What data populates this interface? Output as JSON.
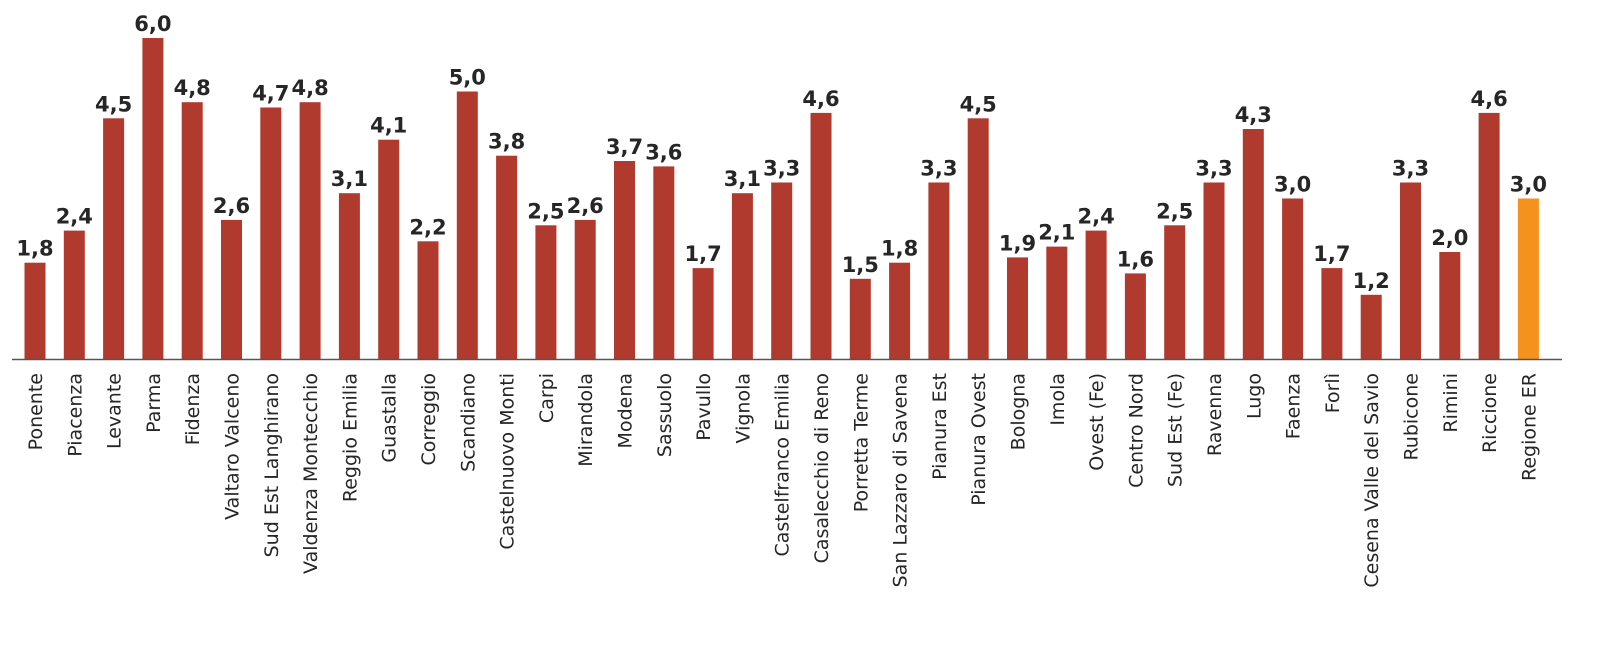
{
  "chart_data": {
    "type": "bar",
    "categories": [
      "Ponente",
      "Piacenza",
      "Levante",
      "Parma",
      "Fidenza",
      "Valtaro Valceno",
      "Sud Est Langhirano",
      "Valdenza Montecchio",
      "Reggio Emilia",
      "Guastalla",
      "Correggio",
      "Scandiano",
      "Castelnuovo Monti",
      "Carpi",
      "Mirandola",
      "Modena",
      "Sassuolo",
      "Pavullo",
      "Vignola",
      "Castelfranco Emilia",
      "Casalecchio di Reno",
      "Porretta Terme",
      "San Lazzaro di Savena",
      "Pianura Est",
      "Pianura Ovest",
      "Bologna",
      "Imola",
      "Ovest (Fe)",
      "Centro Nord",
      "Sud Est (Fe)",
      "Ravenna",
      "Lugo",
      "Faenza",
      "Forlì",
      "Cesena Valle del Savio",
      "Rubicone",
      "Rimini",
      "Riccione",
      "Regione ER"
    ],
    "values": [
      1.8,
      2.4,
      4.5,
      6.0,
      4.8,
      2.6,
      4.7,
      4.8,
      3.1,
      4.1,
      2.2,
      5.0,
      3.8,
      2.5,
      2.6,
      3.7,
      3.6,
      1.7,
      3.1,
      3.3,
      4.6,
      1.5,
      1.8,
      3.3,
      4.5,
      1.9,
      2.1,
      2.4,
      1.6,
      2.5,
      3.3,
      4.3,
      3.0,
      1.7,
      1.2,
      3.3,
      2.0,
      4.6,
      3.0
    ],
    "value_labels": [
      "1,8",
      "2,4",
      "4,5",
      "6,0",
      "4,8",
      "2,6",
      "4,7",
      "4,8",
      "3,1",
      "4,1",
      "2,2",
      "5,0",
      "3,8",
      "2,5",
      "2,6",
      "3,7",
      "3,6",
      "1,7",
      "3,1",
      "3,3",
      "4,6",
      "1,5",
      "1,8",
      "3,3",
      "4,5",
      "1,9",
      "2,1",
      "2,4",
      "1,6",
      "2,5",
      "3,3",
      "4,3",
      "3,0",
      "1,7",
      "1,2",
      "3,3",
      "2,0",
      "4,6",
      "3,0"
    ],
    "ylim": [
      0,
      6.0
    ],
    "grid": false,
    "legend": "none",
    "colors": {
      "bar": "#b03a2e",
      "highlight_bar": "#f5921e",
      "highlight_category": "Regione ER",
      "axis": "#555555"
    }
  }
}
